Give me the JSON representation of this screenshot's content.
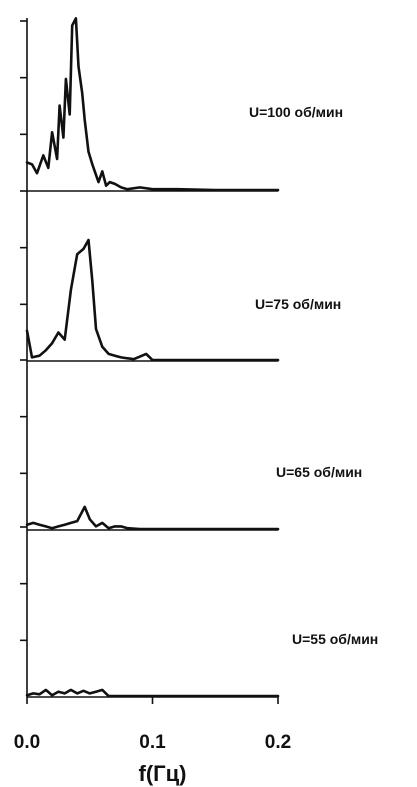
{
  "chart_data": {
    "type": "line",
    "xlabel": "f(Гц)",
    "xlim": [
      0.0,
      0.2
    ],
    "x_ticks": [
      0.0,
      0.1,
      0.2
    ],
    "x_tick_labels": [
      "0.0",
      "0.1",
      "0.2"
    ],
    "grid": false,
    "panels": [
      {
        "label": "U=100 об/мин",
        "ylim": [
          0,
          1
        ],
        "x": [
          0.0,
          0.004,
          0.008,
          0.013,
          0.017,
          0.02,
          0.024,
          0.026,
          0.029,
          0.031,
          0.034,
          0.036,
          0.039,
          0.041,
          0.044,
          0.046,
          0.049,
          0.052,
          0.057,
          0.06,
          0.063,
          0.066,
          0.07,
          0.075,
          0.08,
          0.09,
          0.1,
          0.12,
          0.15,
          0.2
        ],
        "y": [
          0.16,
          0.15,
          0.1,
          0.2,
          0.13,
          0.33,
          0.18,
          0.48,
          0.3,
          0.63,
          0.43,
          0.93,
          0.97,
          0.7,
          0.55,
          0.4,
          0.22,
          0.15,
          0.05,
          0.11,
          0.03,
          0.05,
          0.04,
          0.02,
          0.01,
          0.02,
          0.01,
          0.01,
          0.005,
          0.005
        ]
      },
      {
        "label": "U=75 об/мин",
        "ylim": [
          0,
          1
        ],
        "x": [
          0.0,
          0.004,
          0.01,
          0.015,
          0.02,
          0.025,
          0.03,
          0.035,
          0.04,
          0.045,
          0.049,
          0.052,
          0.055,
          0.06,
          0.065,
          0.07,
          0.075,
          0.085,
          0.095,
          0.1,
          0.12,
          0.15,
          0.2
        ],
        "y": [
          0.17,
          0.02,
          0.03,
          0.06,
          0.1,
          0.16,
          0.12,
          0.4,
          0.6,
          0.63,
          0.68,
          0.45,
          0.18,
          0.08,
          0.04,
          0.03,
          0.02,
          0.01,
          0.04,
          0.005,
          0.005,
          0.005,
          0.005
        ]
      },
      {
        "label": "U=65 об/мин",
        "ylim": [
          0,
          1
        ],
        "x": [
          0.0,
          0.005,
          0.01,
          0.015,
          0.02,
          0.025,
          0.03,
          0.035,
          0.04,
          0.046,
          0.05,
          0.055,
          0.06,
          0.065,
          0.07,
          0.075,
          0.08,
          0.09,
          0.12,
          0.15,
          0.2
        ],
        "y": [
          0.03,
          0.04,
          0.03,
          0.02,
          0.01,
          0.02,
          0.03,
          0.04,
          0.05,
          0.13,
          0.06,
          0.02,
          0.04,
          0.01,
          0.02,
          0.02,
          0.01,
          0.005,
          0.005,
          0.005,
          0.005
        ]
      },
      {
        "label": "U=55 об/мин",
        "ylim": [
          0,
          1
        ],
        "x": [
          0.0,
          0.005,
          0.01,
          0.015,
          0.02,
          0.025,
          0.03,
          0.035,
          0.04,
          0.045,
          0.05,
          0.055,
          0.06,
          0.065,
          0.08,
          0.1,
          0.15,
          0.2
        ],
        "y": [
          0.01,
          0.02,
          0.015,
          0.04,
          0.01,
          0.03,
          0.02,
          0.04,
          0.02,
          0.035,
          0.02,
          0.03,
          0.04,
          0.005,
          0.005,
          0.005,
          0.005,
          0.005
        ]
      }
    ]
  }
}
